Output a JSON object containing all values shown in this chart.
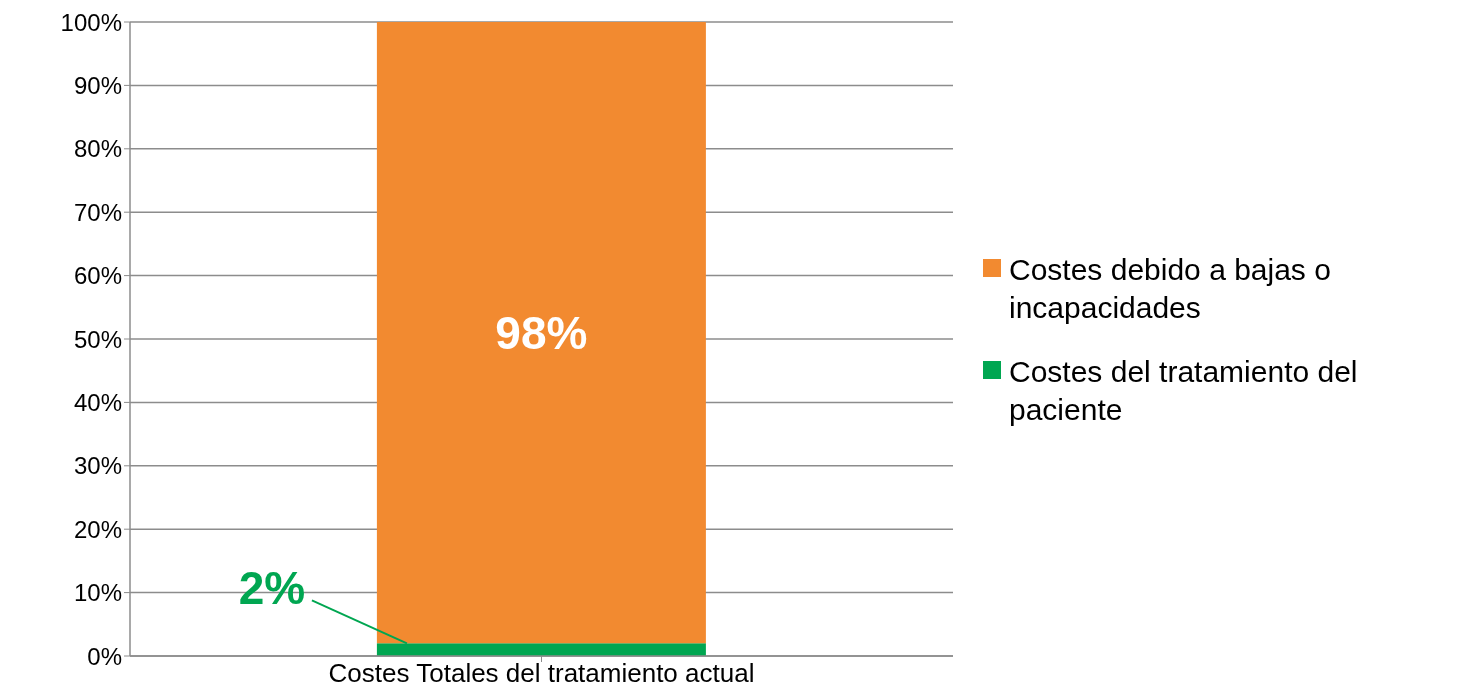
{
  "chart_data": {
    "type": "bar",
    "stacked": true,
    "categories": [
      "Costes Totales del tratamiento actual"
    ],
    "series": [
      {
        "name": "Costes del tratamiento del paciente",
        "color": "#00a651",
        "values": [
          2
        ],
        "value_labels": [
          "2%"
        ]
      },
      {
        "name": "Costes debido a bajas o incapacidades",
        "color": "#f28a30",
        "values": [
          98
        ],
        "value_labels": [
          "98%"
        ]
      }
    ],
    "ylim": [
      0,
      100
    ],
    "yticks": [
      {
        "value": 0,
        "label": "0%"
      },
      {
        "value": 10,
        "label": "10%"
      },
      {
        "value": 20,
        "label": "20%"
      },
      {
        "value": 30,
        "label": "30%"
      },
      {
        "value": 40,
        "label": "40%"
      },
      {
        "value": 50,
        "label": "50%"
      },
      {
        "value": 60,
        "label": "60%"
      },
      {
        "value": 70,
        "label": "70%"
      },
      {
        "value": 80,
        "label": "80%"
      },
      {
        "value": 90,
        "label": "90%"
      },
      {
        "value": 100,
        "label": "100%"
      }
    ],
    "grid": "y",
    "legend": "right"
  }
}
